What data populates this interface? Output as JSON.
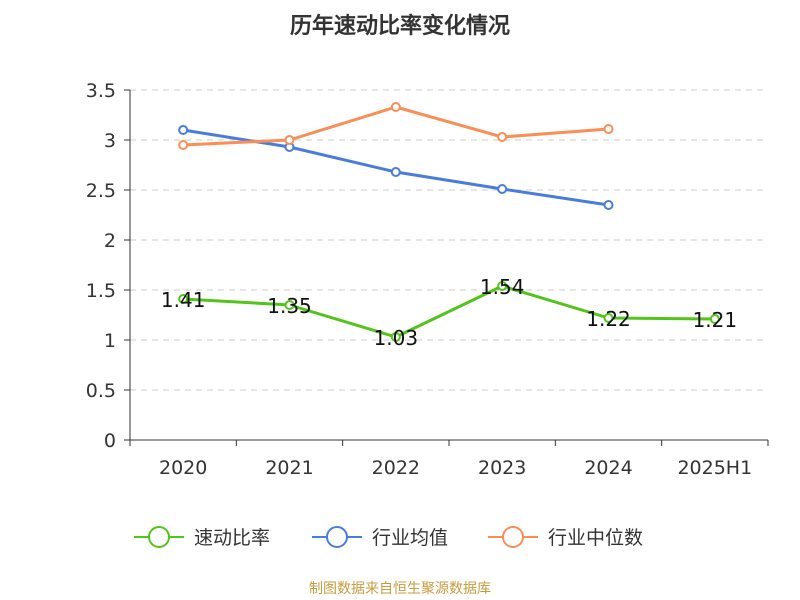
{
  "chart_data": {
    "type": "line",
    "title": "历年速动比率变化情况",
    "categories": [
      "2020",
      "2021",
      "2022",
      "2023",
      "2024",
      "2025H1"
    ],
    "ylim": [
      0,
      3.5
    ],
    "yticks": [
      "0",
      "0.5",
      "1",
      "1.5",
      "2",
      "2.5",
      "3",
      "3.5"
    ],
    "grid": true,
    "legend_position": "bottom",
    "series": [
      {
        "name": "速动比率",
        "color": "#52c41a",
        "values": [
          1.41,
          1.35,
          1.03,
          1.54,
          1.22,
          1.21
        ],
        "labels": [
          "1.41",
          "1.35",
          "1.03",
          "1.54",
          "1.22",
          "1.21"
        ]
      },
      {
        "name": "行业均值",
        "color": "#4a7ddb",
        "values": [
          3.1,
          2.93,
          2.68,
          2.51,
          2.35,
          null
        ]
      },
      {
        "name": "行业中位数",
        "color": "#f98e56",
        "values": [
          2.95,
          3.0,
          3.33,
          3.03,
          3.11,
          null
        ]
      }
    ]
  },
  "source": "制图数据来自恒生聚源数据库"
}
